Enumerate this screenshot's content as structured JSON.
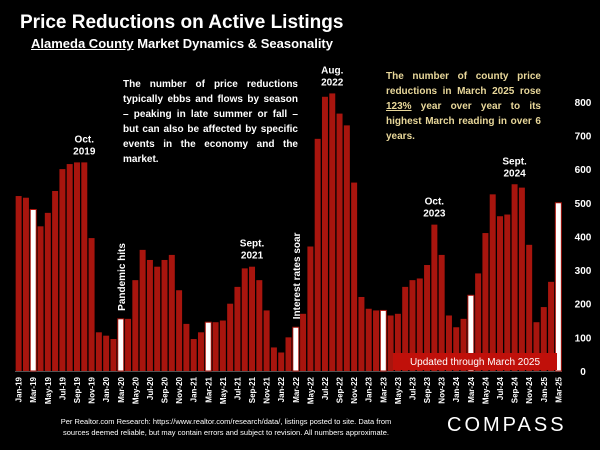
{
  "header": {
    "title": "Price Reductions on Active Listings",
    "subtitle_underlined": "Alameda County",
    "subtitle_rest": " Market Dynamics & Seasonality"
  },
  "notes": {
    "left": "The number of price reductions typically ebbs and flows by season – peaking in late summer or fall – but can also be affected by specific events in the economy and the market.",
    "right_pre": "The number of county price reductions in March 2025 rose ",
    "right_pct": "123%",
    "right_post": " year over year to its highest March reading in over 6 years."
  },
  "footnote": "Per Realtor.com Research: https://www.realtor.com/research/data/, listings posted to site. Data from sources deemed reliable, but may contain errors and subject to revision. All numbers approximate.",
  "logo": "COMPASS",
  "colors": {
    "bar": "#a8150e",
    "highlight_bar": "#ffffff",
    "badge": "#c0100a",
    "note_right": "#e8d79a"
  },
  "chart_data": {
    "type": "bar",
    "categories": [
      "Jan-19",
      "Feb-19",
      "Mar-19",
      "Apr-19",
      "May-19",
      "Jun-19",
      "Jul-19",
      "Aug-19",
      "Sep-19",
      "Oct-19",
      "Nov-19",
      "Dec-19",
      "Jan-20",
      "Feb-20",
      "Mar-20",
      "Apr-20",
      "May-20",
      "Jun-20",
      "Jul-20",
      "Aug-20",
      "Sep-20",
      "Oct-20",
      "Nov-20",
      "Dec-20",
      "Jan-21",
      "Feb-21",
      "Mar-21",
      "Apr-21",
      "May-21",
      "Jun-21",
      "Jul-21",
      "Aug-21",
      "Sep-21",
      "Oct-21",
      "Nov-21",
      "Dec-21",
      "Jan-22",
      "Feb-22",
      "Mar-22",
      "Apr-22",
      "May-22",
      "Jun-22",
      "Jul-22",
      "Aug-22",
      "Sep-22",
      "Oct-22",
      "Nov-22",
      "Dec-22",
      "Jan-23",
      "Feb-23",
      "Mar-23",
      "Apr-23",
      "May-23",
      "Jun-23",
      "Jul-23",
      "Aug-23",
      "Sep-23",
      "Oct-23",
      "Nov-23",
      "Dec-23",
      "Jan-24",
      "Feb-24",
      "Mar-24",
      "Apr-24",
      "May-24",
      "Jun-24",
      "Jul-24",
      "Aug-24",
      "Sep-24",
      "Oct-24",
      "Nov-24",
      "Dec-24",
      "Jan-25",
      "Feb-25",
      "Mar-25"
    ],
    "x_tick_labels": [
      "Jan-19",
      "Mar-19",
      "May-19",
      "Jul-19",
      "Sep-19",
      "Nov-19",
      "Jan-20",
      "Mar-20",
      "May-20",
      "Jul-20",
      "Sep-20",
      "Nov-20",
      "Jan-21",
      "Mar-21",
      "May-21",
      "Jul-21",
      "Sep-21",
      "Nov-21",
      "Jan-22",
      "Mar-22",
      "May-22",
      "Jul-22",
      "Sep-22",
      "Nov-22",
      "Jan-23",
      "Mar-23",
      "May-23",
      "Jul-23",
      "Sep-23",
      "Nov-23",
      "Jan-24",
      "Mar-24",
      "May-24",
      "Jul-24",
      "Sep-24",
      "Nov-24",
      "Jan-25",
      "Mar-25"
    ],
    "values": [
      520,
      515,
      480,
      430,
      470,
      535,
      600,
      615,
      620,
      620,
      395,
      115,
      105,
      95,
      155,
      155,
      270,
      360,
      330,
      310,
      330,
      345,
      240,
      140,
      95,
      115,
      145,
      145,
      150,
      200,
      250,
      305,
      310,
      270,
      180,
      70,
      55,
      100,
      130,
      170,
      370,
      690,
      815,
      825,
      765,
      730,
      560,
      220,
      185,
      180,
      180,
      165,
      170,
      250,
      270,
      275,
      315,
      435,
      345,
      165,
      130,
      155,
      225,
      290,
      410,
      525,
      460,
      465,
      555,
      545,
      375,
      145,
      190,
      265,
      500
    ],
    "highlight_months": [
      "Mar-19",
      "Mar-20",
      "Mar-21",
      "Mar-22",
      "Mar-23",
      "Mar-24",
      "Mar-25"
    ],
    "ylim": [
      0,
      850
    ],
    "y_ticks": [
      0,
      100,
      200,
      300,
      400,
      500,
      600,
      700,
      800
    ],
    "annotations": [
      {
        "text_lines": [
          "Oct.",
          "2019"
        ],
        "at": "Oct-19"
      },
      {
        "text_lines": [
          "Sept.",
          "2021"
        ],
        "at": "Sep-21"
      },
      {
        "text_lines": [
          "Aug.",
          "2022"
        ],
        "at": "Aug-22"
      },
      {
        "text_lines": [
          "Oct.",
          "2023"
        ],
        "at": "Oct-23"
      },
      {
        "text_lines": [
          "Sept.",
          "2024"
        ],
        "at": "Sep-24"
      }
    ],
    "vertical_labels": [
      {
        "text": "Pandemic hits",
        "at": "Mar-20"
      },
      {
        "text": "Interest rates soar",
        "at": "Mar-22"
      }
    ],
    "badge": "Updated through March 2025"
  }
}
